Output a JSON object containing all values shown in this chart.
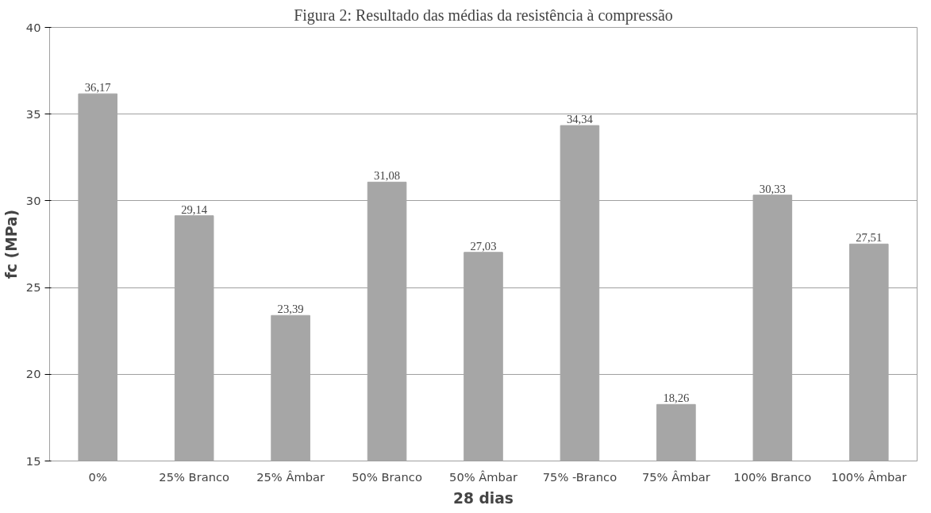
{
  "chart_data": {
    "type": "bar",
    "title": "Figura 2: Resultado das médias da resistência à compressão",
    "xlabel": "28 dias",
    "ylabel": "fc (MPa)",
    "categories": [
      "0%",
      "25% Branco",
      "25% Âmbar",
      "50% Branco",
      "50% Âmbar",
      "75% -Branco",
      "75% Âmbar",
      "100% Branco",
      "100% Âmbar"
    ],
    "values": [
      36.17,
      29.14,
      23.39,
      31.08,
      27.03,
      34.34,
      18.26,
      30.33,
      27.51
    ],
    "value_labels": [
      "36,17",
      "29,14",
      "23,39",
      "31,08",
      "27,03",
      "34,34",
      "18,26",
      "30,33",
      "27,51"
    ],
    "color": "#a6a6a6",
    "ylim": [
      15,
      40
    ],
    "yticks": [
      15,
      20,
      25,
      30,
      35,
      40
    ],
    "grid": "y"
  }
}
